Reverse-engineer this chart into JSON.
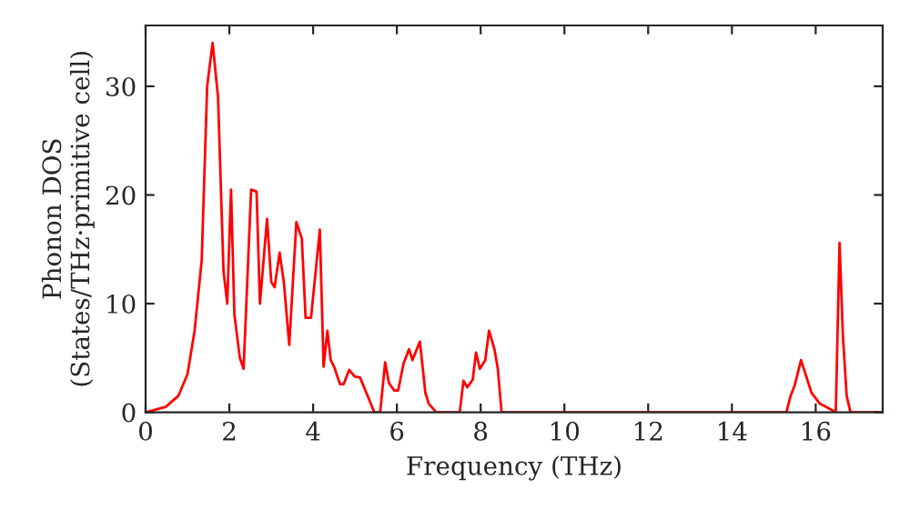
{
  "chart_data": {
    "type": "line",
    "xlabel": "Frequency (THz)",
    "ylabel": "Phonon DOS\n(States/THz·primitive cell)",
    "x": [
      0,
      0.48,
      0.78,
      1.0,
      1.17,
      1.34,
      1.47,
      1.6,
      1.73,
      1.86,
      1.95,
      2.04,
      2.12,
      2.25,
      2.34,
      2.52,
      2.65,
      2.73,
      2.9,
      3.0,
      3.08,
      3.2,
      3.3,
      3.43,
      3.6,
      3.73,
      3.82,
      3.95,
      4.16,
      4.25,
      4.34,
      4.42,
      4.5,
      4.64,
      4.73,
      4.86,
      4.99,
      5.12,
      5.25,
      5.46,
      5.6,
      5.72,
      5.81,
      5.94,
      6.03,
      6.16,
      6.29,
      6.37,
      6.55,
      6.68,
      6.76,
      6.94,
      7.5,
      7.59,
      7.68,
      7.81,
      7.89,
      7.98,
      8.11,
      8.2,
      8.33,
      8.41,
      8.5,
      15.3,
      15.4,
      15.5,
      15.65,
      15.8,
      15.9,
      16.1,
      16.39,
      16.48,
      16.57,
      16.65,
      16.74,
      16.83,
      17.6
    ],
    "series": [
      {
        "color": "#ff0000",
        "values": [
          0,
          0.5,
          1.5,
          3.5,
          7.5,
          14,
          30,
          34,
          29,
          13,
          10,
          20.5,
          9,
          5,
          4,
          20.5,
          20.3,
          10,
          17.8,
          12,
          11.5,
          14.7,
          12,
          6.2,
          17.5,
          16,
          8.7,
          8.7,
          16.8,
          4.2,
          7.5,
          4.8,
          4.2,
          2.6,
          2.6,
          3.9,
          3.3,
          3.2,
          2,
          0,
          0,
          4.6,
          2.7,
          2,
          2,
          4.5,
          5.8,
          4.8,
          6.5,
          1.8,
          0.8,
          0,
          0,
          2.9,
          2.3,
          3,
          5.5,
          4,
          4.8,
          7.5,
          5.8,
          4,
          0,
          0,
          1.5,
          2.5,
          4.8,
          3,
          1.8,
          0.8,
          0.2,
          0,
          15.6,
          7,
          1.5,
          0,
          0
        ]
      }
    ],
    "xlim": [
      0,
      17.6
    ],
    "ylim": [
      0,
      35.6
    ],
    "xticks": [
      0,
      2,
      4,
      6,
      8,
      10,
      12,
      14,
      16
    ],
    "yticks": [
      0,
      10,
      20,
      30
    ],
    "grid": false,
    "legend": false,
    "line_style": "solid"
  }
}
